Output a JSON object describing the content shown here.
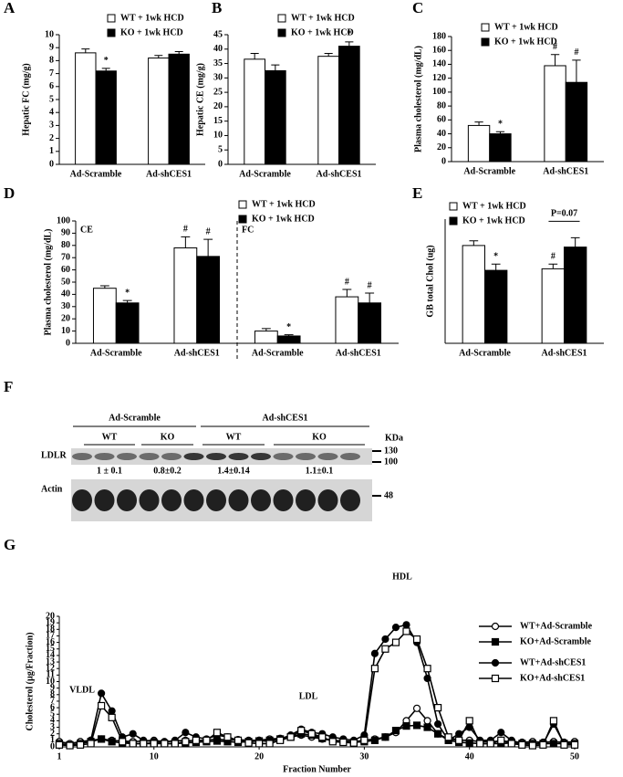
{
  "chart_data": [
    {
      "type": "bar",
      "panel": "A",
      "ylabel": "Hepatic FC  (mg/g)",
      "categories": [
        "Ad-Scramble",
        "Ad-shCES1"
      ],
      "ylim": [
        0,
        10
      ],
      "yticks": [
        0,
        1,
        2,
        3,
        4,
        5,
        6,
        7,
        8,
        9,
        10
      ],
      "series": [
        {
          "name": "WT + 1wk HCD",
          "color": "#ffffff",
          "values": [
            8.6,
            8.2
          ],
          "errors": [
            0.3,
            0.2
          ],
          "marks_above": [
            null,
            null
          ]
        },
        {
          "name": "KO + 1wk HCD",
          "color": "#000000",
          "values": [
            7.2,
            8.5
          ],
          "errors": [
            0.2,
            0.2
          ],
          "marks_above": [
            "*",
            null
          ]
        }
      ]
    },
    {
      "type": "bar",
      "panel": "B",
      "ylabel": "Hepatic CE  (mg/g)",
      "categories": [
        "Ad-Scramble",
        "Ad-shCES1"
      ],
      "ylim": [
        0,
        45
      ],
      "yticks": [
        0,
        5,
        10,
        15,
        20,
        25,
        30,
        35,
        40,
        45
      ],
      "series": [
        {
          "name": "WT + 1wk HCD",
          "color": "#ffffff",
          "values": [
            36.5,
            37.5
          ],
          "errors": [
            2,
            1
          ],
          "marks_above": [
            null,
            null
          ]
        },
        {
          "name": "KO + 1wk HCD",
          "color": "#000000",
          "values": [
            32.5,
            41
          ],
          "errors": [
            2,
            1.5
          ],
          "marks_above": [
            null,
            "*"
          ]
        }
      ]
    },
    {
      "type": "bar",
      "panel": "C",
      "ylabel": "Plasma cholesterol  (mg/dL)",
      "categories": [
        "Ad-Scramble",
        "Ad-shCES1"
      ],
      "ylim": [
        0,
        180
      ],
      "yticks": [
        0,
        20,
        40,
        60,
        80,
        100,
        120,
        140,
        160,
        180
      ],
      "series": [
        {
          "name": "WT + 1wk HCD",
          "color": "#ffffff",
          "values": [
            52,
            138
          ],
          "errors": [
            5,
            16
          ],
          "marks_above": [
            null,
            "#"
          ]
        },
        {
          "name": "KO + 1wk HCD",
          "color": "#000000",
          "values": [
            40,
            114
          ],
          "errors": [
            3,
            32
          ],
          "marks_above": [
            "*",
            "#"
          ]
        }
      ]
    },
    {
      "type": "bar",
      "panel": "D",
      "ylabel": "Plasma cholesterol  (mg/dL)",
      "categories": [
        "Ad-Scramble",
        "Ad-shCES1",
        "Ad-Scramble",
        "Ad-shCES1"
      ],
      "groups": [
        {
          "label": "CE",
          "start": 0
        },
        {
          "label": "FC",
          "start": 2
        }
      ],
      "ylim": [
        0,
        100
      ],
      "yticks": [
        0,
        10,
        20,
        30,
        40,
        50,
        60,
        70,
        80,
        90,
        100
      ],
      "series": [
        {
          "name": "WT + 1wk HCD",
          "color": "#ffffff",
          "values": [
            45,
            78,
            10,
            38
          ],
          "errors": [
            2,
            9,
            2,
            6
          ],
          "marks_above": [
            null,
            "#",
            null,
            "#"
          ]
        },
        {
          "name": "KO + 1wk HCD",
          "color": "#000000",
          "values": [
            33,
            71,
            6,
            33
          ],
          "errors": [
            2,
            14,
            1,
            8
          ],
          "marks_above": [
            "*",
            "#",
            "*",
            "#"
          ]
        }
      ]
    },
    {
      "type": "bar",
      "panel": "E",
      "ylabel": "GB  total Chol  (ug)",
      "categories": [
        "Ad-Scramble",
        "Ad-shCES1"
      ],
      "ylim": [
        0,
        80
      ],
      "bracket": {
        "label": "P=0.07",
        "category": 1
      },
      "series": [
        {
          "name": "WT + 1wk HCD",
          "color": "#ffffff",
          "values": [
            63,
            48
          ],
          "errors": [
            3,
            3
          ],
          "marks_above": [
            null,
            "#"
          ]
        },
        {
          "name": "KO + 1wk HCD",
          "color": "#000000",
          "values": [
            47,
            62
          ],
          "errors": [
            4,
            6
          ],
          "marks_above": [
            "*",
            null
          ]
        }
      ]
    },
    {
      "type": "line",
      "panel": "G",
      "ylabel": "Cholesterol (µg/Fraction)",
      "xlabel": "Fraction Number",
      "peak_labels": [
        "VLDL",
        "LDL",
        "HDL"
      ],
      "x": [
        1,
        2,
        3,
        4,
        5,
        6,
        7,
        8,
        9,
        10,
        11,
        12,
        13,
        14,
        15,
        16,
        17,
        18,
        19,
        20,
        21,
        22,
        23,
        24,
        25,
        26,
        27,
        28,
        29,
        30,
        31,
        32,
        33,
        34,
        35,
        36,
        37,
        38,
        39,
        40,
        41,
        42,
        43,
        44,
        45,
        46,
        47,
        48,
        49,
        50
      ],
      "xlim": [
        1,
        50
      ],
      "xticks": [
        1,
        10,
        20,
        30,
        40,
        50
      ],
      "ylim": [
        0,
        20
      ],
      "yticks": [
        0,
        1,
        2,
        3,
        4,
        5,
        6,
        7,
        8,
        9,
        10,
        11,
        12,
        13,
        14,
        15,
        16,
        17,
        18,
        19,
        20
      ],
      "series": [
        {
          "name": "WT+Ad-Scramble",
          "color": "#000000",
          "marker": "circle",
          "fill": "#ffffff",
          "values": [
            0.8,
            0.5,
            0.8,
            1.0,
            1.2,
            1.0,
            0.9,
            0.8,
            0.9,
            1.0,
            0.8,
            0.9,
            1.0,
            0.9,
            1.0,
            1.2,
            1.0,
            1.1,
            1.0,
            1.0,
            1.2,
            1.3,
            1.5,
            1.8,
            1.5,
            1.2,
            1.0,
            0.9,
            0.8,
            1.0,
            1.2,
            1.5,
            2.2,
            4.0,
            5.9,
            4.0,
            2.0,
            1.2,
            1.0,
            1.0,
            0.8,
            0.8,
            0.9,
            0.8,
            0.7,
            0.8,
            0.7,
            0.8,
            0.7,
            0.8
          ]
        },
        {
          "name": "KO+Ad-Scramble",
          "color": "#000000",
          "marker": "square",
          "fill": "#000000",
          "values": [
            0.5,
            0.3,
            0.5,
            0.8,
            1.2,
            0.8,
            0.6,
            0.5,
            0.5,
            0.6,
            0.5,
            0.5,
            0.6,
            0.7,
            0.8,
            0.9,
            0.8,
            0.7,
            0.8,
            0.9,
            1.0,
            1.2,
            1.5,
            2.0,
            1.8,
            1.3,
            1.0,
            0.8,
            0.7,
            0.8,
            1.0,
            1.5,
            2.5,
            3.2,
            3.3,
            3.0,
            2.0,
            1.0,
            0.7,
            0.6,
            0.5,
            0.5,
            0.5,
            0.6,
            0.5,
            0.5,
            0.5,
            0.5,
            0.5,
            0.5
          ]
        },
        {
          "name": "WT+Ad-shCES1",
          "color": "#000000",
          "marker": "circle",
          "fill": "#000000",
          "values": [
            0.5,
            0.2,
            0.5,
            1.0,
            8.2,
            5.5,
            1.5,
            2.0,
            1.0,
            0.8,
            0.7,
            1.0,
            2.2,
            1.5,
            1.2,
            1.8,
            1.5,
            1.0,
            0.8,
            1.0,
            0.8,
            1.2,
            1.8,
            2.7,
            2.2,
            2.0,
            1.5,
            1.2,
            1.0,
            1.8,
            14.3,
            16.5,
            18.3,
            18.7,
            16.0,
            10.5,
            3.5,
            1.0,
            2.0,
            3.0,
            1.0,
            1.0,
            2.2,
            1.0,
            0.5,
            0.5,
            0.5,
            3.5,
            0.5,
            0.5
          ]
        },
        {
          "name": "KO+Ad-shCES1",
          "color": "#000000",
          "marker": "square",
          "fill": "#ffffff",
          "values": [
            0.3,
            0.2,
            0.3,
            0.5,
            6.3,
            4.5,
            0.8,
            0.5,
            0.5,
            0.5,
            0.5,
            0.5,
            0.8,
            1.0,
            1.0,
            2.2,
            1.5,
            1.0,
            0.6,
            0.5,
            0.5,
            1.0,
            1.5,
            2.5,
            2.0,
            1.5,
            0.8,
            0.7,
            0.6,
            1.0,
            12.0,
            15.0,
            16.0,
            17.7,
            16.5,
            12.0,
            6.0,
            1.5,
            1.0,
            4.0,
            0.5,
            0.5,
            1.0,
            0.5,
            0.3,
            0.2,
            0.3,
            4.0,
            0.3,
            0.3
          ]
        }
      ]
    }
  ],
  "blot": {
    "panel": "F",
    "groups": [
      "Ad-Scramble",
      "Ad-shCES1"
    ],
    "genotypes": [
      "WT",
      "KO",
      "WT",
      "KO"
    ],
    "unit": "KDa",
    "rows": [
      {
        "label": "LDLR",
        "markers": [
          "130",
          "100"
        ]
      },
      {
        "label": "Actin",
        "markers": [
          "48"
        ]
      }
    ],
    "quantification": [
      "1 ± 0.1",
      "0.8±0.2",
      "1.4±0.14",
      "1.1±0.1"
    ]
  }
}
